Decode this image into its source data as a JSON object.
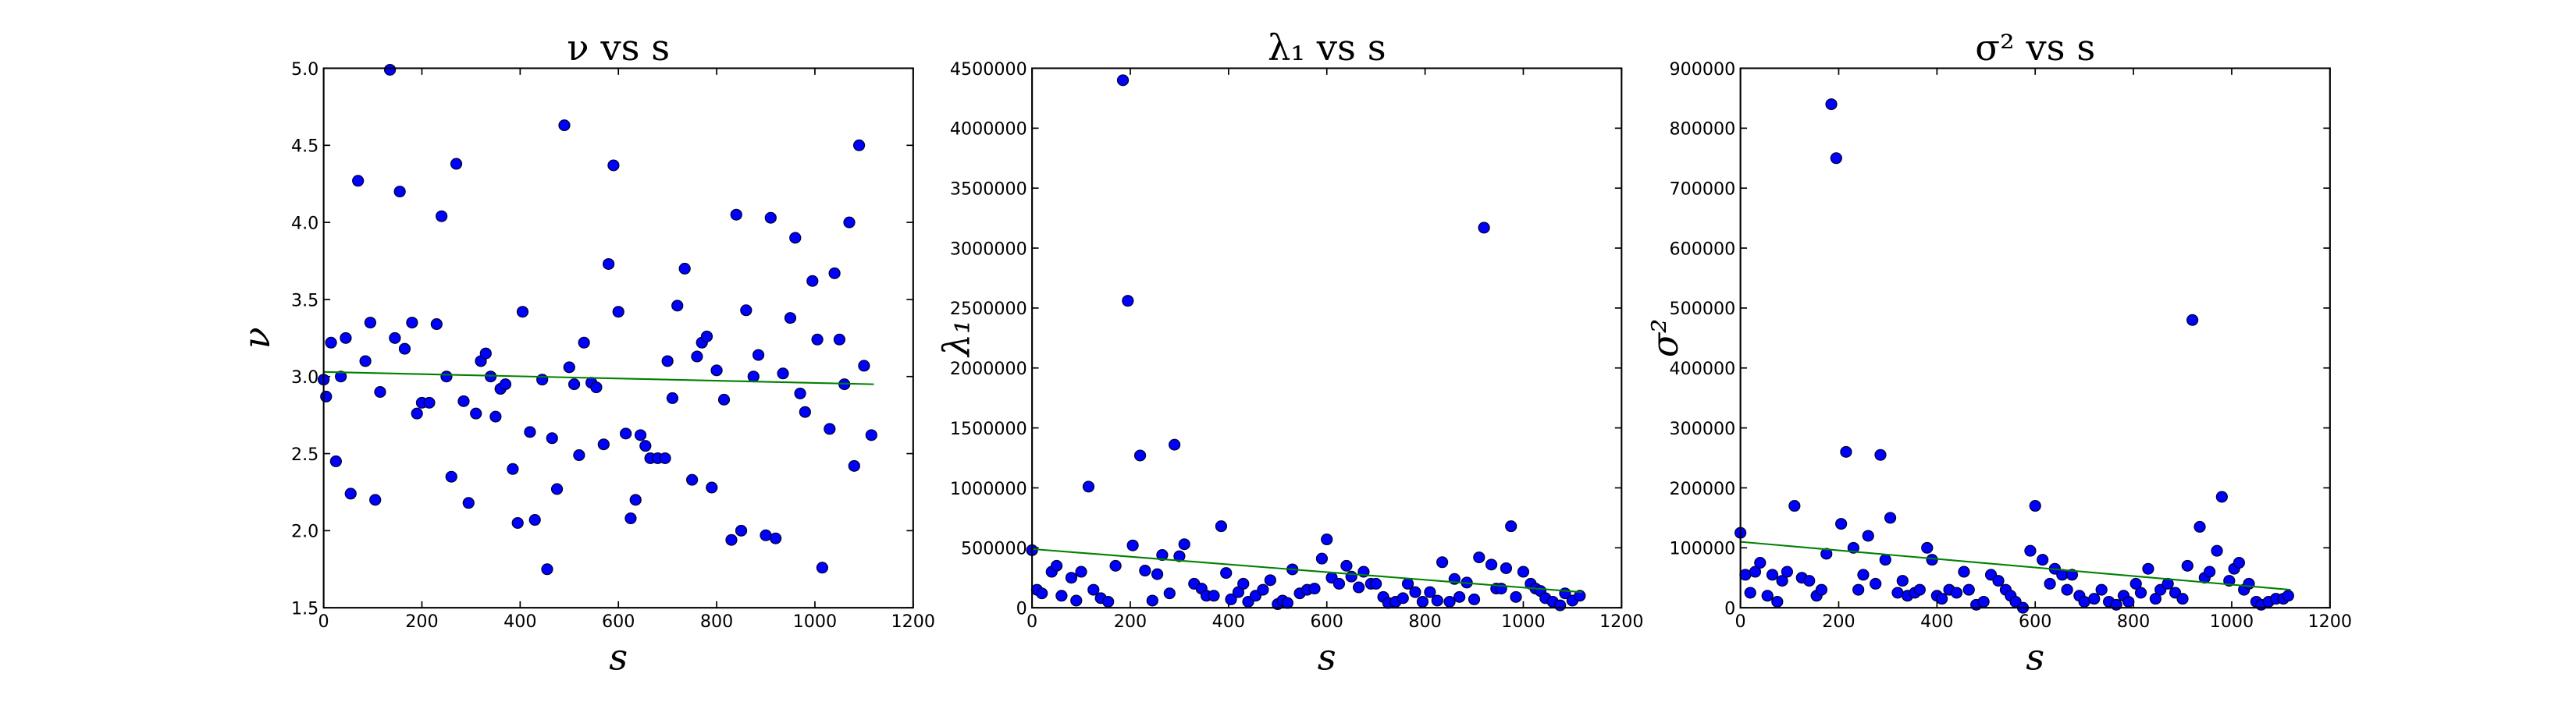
{
  "chart_data": [
    {
      "type": "scatter",
      "title": "ν vs s",
      "xlabel": "s",
      "ylabel": "ν",
      "xlim": [
        0,
        1200
      ],
      "xticks": [
        0,
        200,
        400,
        600,
        800,
        1000,
        1200
      ],
      "ylim": [
        1.5,
        5
      ],
      "yticks": [
        1.5,
        {
          "value": 2,
          "label": "2.0"
        },
        2.5,
        {
          "value": 3,
          "label": "3.0"
        },
        3.5,
        {
          "value": 4,
          "label": "4.0"
        },
        4.5,
        {
          "value": 5,
          "label": "5.0"
        }
      ],
      "series": [
        {
          "color": "#0000ff",
          "x": [
            0,
            5,
            15,
            25,
            35,
            45,
            55,
            70,
            85,
            95,
            105,
            115,
            135,
            145,
            155,
            165,
            180,
            190,
            200,
            215,
            230,
            240,
            250,
            260,
            270,
            285,
            295,
            310,
            320,
            330,
            340,
            350,
            360,
            370,
            385,
            395,
            405,
            420,
            430,
            445,
            455,
            465,
            475,
            490,
            500,
            510,
            520,
            530,
            545,
            555,
            570,
            580,
            590,
            600,
            615,
            625,
            635,
            645,
            655,
            665,
            680,
            695,
            700,
            710,
            720,
            735,
            750,
            760,
            770,
            780,
            790,
            800,
            815,
            830,
            840,
            850,
            860,
            875,
            885,
            900,
            910,
            920,
            935,
            950,
            960,
            970,
            980,
            995,
            1005,
            1015,
            1030,
            1040,
            1050,
            1060,
            1070,
            1080,
            1090,
            1100,
            1115
          ],
          "values": [
            2.98,
            2.87,
            3.22,
            2.45,
            3.0,
            3.25,
            2.24,
            4.27,
            3.1,
            3.35,
            2.2,
            2.9,
            4.99,
            3.25,
            4.2,
            3.18,
            3.35,
            2.76,
            2.83,
            2.83,
            3.34,
            4.04,
            3.0,
            2.35,
            4.38,
            2.84,
            2.18,
            2.76,
            3.1,
            3.15,
            3.0,
            2.74,
            2.92,
            2.95,
            2.4,
            2.05,
            3.42,
            2.64,
            2.07,
            2.98,
            1.75,
            2.6,
            2.27,
            4.63,
            3.06,
            2.95,
            2.49,
            3.22,
            2.96,
            2.93,
            2.56,
            3.73,
            4.37,
            3.42,
            2.63,
            2.08,
            2.2,
            2.62,
            2.55,
            2.47,
            2.47,
            2.47,
            3.1,
            2.86,
            3.46,
            3.7,
            2.33,
            3.13,
            3.22,
            3.26,
            2.28,
            3.04,
            2.85,
            1.94,
            4.05,
            2.0,
            3.43,
            3.0,
            3.14,
            1.97,
            4.03,
            1.95,
            3.02,
            3.38,
            3.9,
            2.89,
            2.77,
            3.62,
            3.24,
            1.76,
            2.66,
            3.67,
            3.24,
            2.95,
            4.0,
            2.42,
            4.5,
            3.07,
            2.62
          ]
        },
        {
          "color": "#008000",
          "x": [
            0,
            1120
          ],
          "values": [
            3.03,
            2.95
          ]
        }
      ]
    },
    {
      "type": "scatter",
      "title": "λ₁ vs s",
      "xlabel": "s",
      "ylabel": "λ₁",
      "xlim": [
        0,
        1200
      ],
      "xticks": [
        0,
        200,
        400,
        600,
        800,
        1000,
        1200
      ],
      "ylim": [
        0,
        4500000
      ],
      "yticks": [
        0,
        500000,
        1000000,
        1500000,
        2000000,
        2500000,
        3000000,
        3500000,
        4000000,
        4500000
      ],
      "series": [
        {
          "color": "#0000ff",
          "x": [
            0,
            10,
            20,
            40,
            50,
            60,
            80,
            90,
            100,
            115,
            125,
            140,
            155,
            170,
            185,
            195,
            205,
            220,
            230,
            245,
            255,
            265,
            280,
            290,
            300,
            310,
            330,
            345,
            355,
            370,
            385,
            395,
            405,
            420,
            430,
            440,
            455,
            470,
            485,
            500,
            510,
            520,
            530,
            545,
            560,
            575,
            590,
            600,
            610,
            625,
            640,
            650,
            665,
            675,
            690,
            700,
            715,
            725,
            740,
            755,
            765,
            780,
            795,
            810,
            825,
            835,
            850,
            860,
            870,
            885,
            900,
            910,
            920,
            935,
            945,
            955,
            965,
            975,
            985,
            1000,
            1015,
            1025,
            1035,
            1045,
            1060,
            1075,
            1085,
            1100,
            1115
          ],
          "values": [
            480000,
            150000,
            120000,
            300000,
            350000,
            100000,
            250000,
            60000,
            300000,
            1010000,
            150000,
            80000,
            50000,
            350000,
            4400000,
            2560000,
            520000,
            1270000,
            310000,
            60000,
            280000,
            440000,
            120000,
            1360000,
            430000,
            530000,
            200000,
            160000,
            100000,
            100000,
            680000,
            290000,
            70000,
            130000,
            200000,
            50000,
            100000,
            150000,
            230000,
            30000,
            60000,
            40000,
            320000,
            120000,
            150000,
            160000,
            410000,
            570000,
            250000,
            200000,
            350000,
            260000,
            170000,
            300000,
            200000,
            200000,
            90000,
            40000,
            50000,
            80000,
            200000,
            130000,
            50000,
            130000,
            60000,
            380000,
            50000,
            240000,
            90000,
            210000,
            70000,
            420000,
            3170000,
            360000,
            160000,
            160000,
            330000,
            680000,
            90000,
            300000,
            200000,
            160000,
            140000,
            80000,
            50000,
            20000,
            120000,
            60000,
            100000
          ]
        },
        {
          "color": "#008000",
          "x": [
            0,
            1120
          ],
          "values": [
            490000,
            130000
          ]
        }
      ]
    },
    {
      "type": "scatter",
      "title": "σ² vs s",
      "xlabel": "s",
      "ylabel": "σ²",
      "xlim": [
        0,
        1200
      ],
      "xticks": [
        0,
        200,
        400,
        600,
        800,
        1000,
        1200
      ],
      "ylim": [
        0,
        900000
      ],
      "yticks": [
        0,
        100000,
        200000,
        300000,
        400000,
        500000,
        600000,
        700000,
        800000,
        900000
      ],
      "series": [
        {
          "color": "#0000ff",
          "x": [
            0,
            10,
            20,
            30,
            40,
            55,
            65,
            75,
            85,
            95,
            110,
            125,
            140,
            155,
            165,
            175,
            185,
            195,
            205,
            215,
            230,
            240,
            250,
            260,
            275,
            285,
            295,
            305,
            320,
            330,
            340,
            355,
            365,
            380,
            390,
            400,
            410,
            425,
            440,
            455,
            465,
            480,
            495,
            510,
            525,
            540,
            550,
            560,
            575,
            590,
            600,
            615,
            630,
            640,
            655,
            665,
            675,
            690,
            700,
            720,
            735,
            750,
            765,
            780,
            790,
            805,
            815,
            830,
            845,
            855,
            870,
            885,
            900,
            910,
            920,
            935,
            945,
            955,
            970,
            980,
            995,
            1005,
            1015,
            1025,
            1035,
            1050,
            1060,
            1075,
            1090,
            1105,
            1115
          ],
          "values": [
            125000,
            55000,
            25000,
            60000,
            75000,
            20000,
            55000,
            10000,
            45000,
            60000,
            170000,
            50000,
            45000,
            20000,
            30000,
            90000,
            840000,
            750000,
            140000,
            260000,
            100000,
            30000,
            55000,
            120000,
            40000,
            255000,
            80000,
            150000,
            25000,
            45000,
            20000,
            25000,
            30000,
            100000,
            80000,
            20000,
            15000,
            30000,
            25000,
            60000,
            30000,
            5000,
            10000,
            55000,
            45000,
            30000,
            20000,
            10000,
            0,
            95000,
            170000,
            80000,
            40000,
            65000,
            55000,
            30000,
            55000,
            20000,
            10000,
            15000,
            30000,
            10000,
            5000,
            20000,
            10000,
            40000,
            25000,
            65000,
            15000,
            30000,
            40000,
            25000,
            15000,
            70000,
            480000,
            135000,
            50000,
            60000,
            95000,
            185000,
            45000,
            65000,
            75000,
            30000,
            40000,
            10000,
            5000,
            10000,
            15000,
            15000,
            20000
          ]
        },
        {
          "color": "#008000",
          "x": [
            0,
            1120
          ],
          "values": [
            110000,
            30000
          ]
        }
      ]
    }
  ]
}
